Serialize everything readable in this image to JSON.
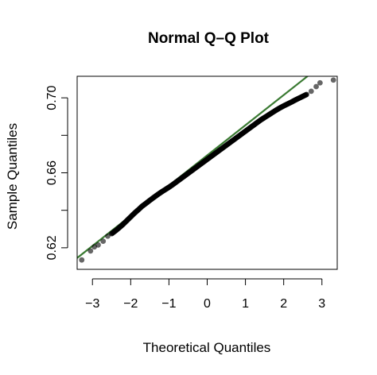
{
  "chart_data": {
    "type": "scatter",
    "title": "Normal Q–Q Plot",
    "xlabel": "Theoretical Quantiles",
    "ylabel": "Sample Quantiles",
    "xlim": [
      -3.4,
      3.4
    ],
    "ylim": [
      0.6085,
      0.7115
    ],
    "x_ticks": [
      -3,
      -2,
      -1,
      0,
      1,
      2,
      3
    ],
    "x_tick_labels": [
      "−3",
      "−2",
      "−1",
      "0",
      "1",
      "2",
      "3"
    ],
    "y_ticks": [
      0.62,
      0.64,
      0.66,
      0.68,
      0.7
    ],
    "y_tick_labels": [
      "0.62",
      "",
      "0.66",
      "",
      "0.70"
    ],
    "grid": false,
    "point_color": "#000000",
    "line_color": "#3a7a32",
    "reference_line": {
      "intercept": 0.6693,
      "slope": 0.0161
    },
    "points": {
      "theoretical_quantiles": [
        -3.28,
        -3.05,
        -2.95,
        -2.85,
        -2.72,
        -2.6,
        -2.5,
        -2.4,
        -2.3,
        -2.2,
        -2.1,
        -2.0,
        -1.9,
        -1.8,
        -1.7,
        -1.6,
        -1.5,
        -1.4,
        -1.3,
        -1.2,
        -1.1,
        -1.0,
        -0.9,
        -0.8,
        -0.7,
        -0.6,
        -0.5,
        -0.4,
        -0.3,
        -0.2,
        -0.1,
        0.0,
        0.1,
        0.2,
        0.3,
        0.4,
        0.5,
        0.6,
        0.7,
        0.8,
        0.9,
        1.0,
        1.1,
        1.2,
        1.3,
        1.4,
        1.5,
        1.6,
        1.7,
        1.8,
        1.9,
        2.0,
        2.1,
        2.2,
        2.3,
        2.4,
        2.5,
        2.6,
        2.72,
        2.85,
        2.95,
        3.3
      ],
      "sample_quantiles": [
        0.6135,
        0.6183,
        0.6205,
        0.6215,
        0.6235,
        0.6262,
        0.6275,
        0.629,
        0.6307,
        0.6325,
        0.6345,
        0.6365,
        0.6385,
        0.6403,
        0.6422,
        0.6437,
        0.6453,
        0.6468,
        0.6483,
        0.6497,
        0.651,
        0.6523,
        0.6537,
        0.6552,
        0.6567,
        0.6582,
        0.6597,
        0.6612,
        0.6627,
        0.6642,
        0.6657,
        0.6672,
        0.6687,
        0.6702,
        0.6717,
        0.6732,
        0.6747,
        0.6762,
        0.6777,
        0.6792,
        0.6807,
        0.6822,
        0.6837,
        0.6852,
        0.6867,
        0.6882,
        0.6895,
        0.6908,
        0.6921,
        0.6934,
        0.6946,
        0.6957,
        0.6967,
        0.6977,
        0.6988,
        0.6998,
        0.7008,
        0.7018,
        0.7035,
        0.706,
        0.708,
        0.7095
      ]
    }
  }
}
